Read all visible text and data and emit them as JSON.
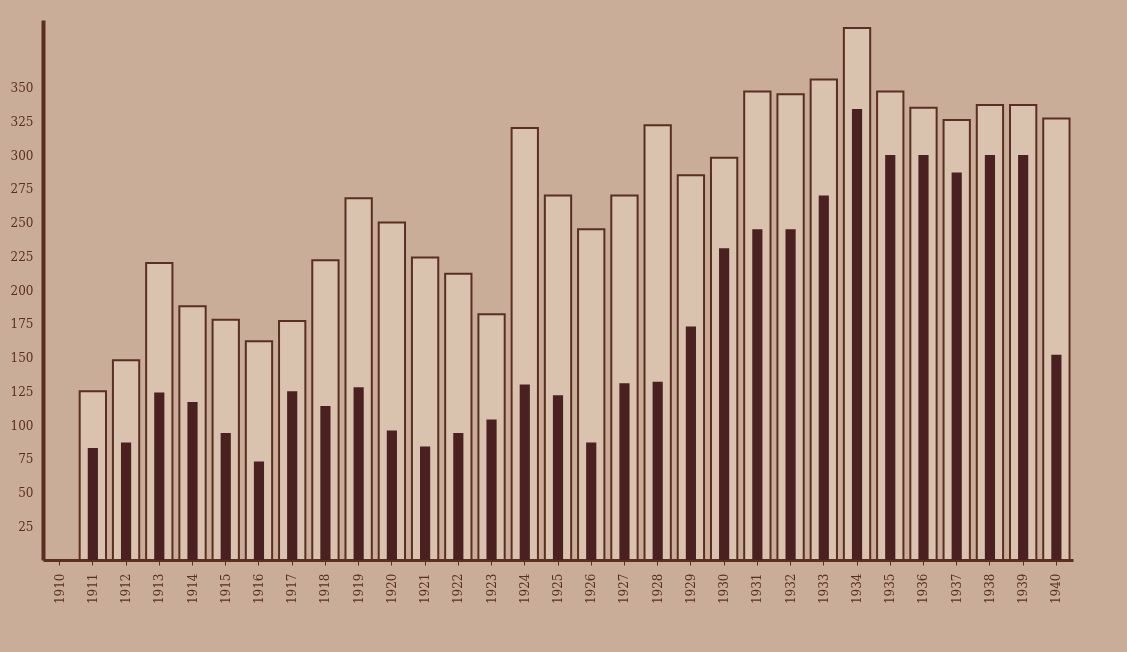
{
  "chart_data": {
    "type": "bar",
    "categories": [
      "1910",
      "1911",
      "1912",
      "1913",
      "1914",
      "1915",
      "1916",
      "1917",
      "1918",
      "1919",
      "1920",
      "1921",
      "1922",
      "1923",
      "1924",
      "1925",
      "1926",
      "1927",
      "1928",
      "1929",
      "1930",
      "1931",
      "1932",
      "1933",
      "1934",
      "1935",
      "1936",
      "1937",
      "1938",
      "1939",
      "1940"
    ],
    "series": [
      {
        "color": "#d9c2ae",
        "values": [
          null,
          125,
          148,
          220,
          188,
          178,
          162,
          177,
          222,
          268,
          250,
          224,
          212,
          182,
          320,
          270,
          245,
          270,
          322,
          285,
          298,
          347,
          345,
          356,
          394,
          347,
          335,
          326,
          337,
          337,
          327
        ]
      },
      {
        "color": "#4a2020",
        "values": [
          null,
          83,
          87,
          124,
          117,
          94,
          73,
          125,
          114,
          128,
          96,
          84,
          94,
          104,
          130,
          122,
          87,
          131,
          132,
          173,
          231,
          245,
          245,
          270,
          334,
          300,
          300,
          287,
          300,
          300,
          152
        ]
      }
    ],
    "ylim": [
      0,
      400
    ],
    "yticks": [
      25,
      50,
      75,
      100,
      125,
      150,
      175,
      200,
      225,
      250,
      275,
      300,
      325,
      350
    ],
    "grid": false
  }
}
